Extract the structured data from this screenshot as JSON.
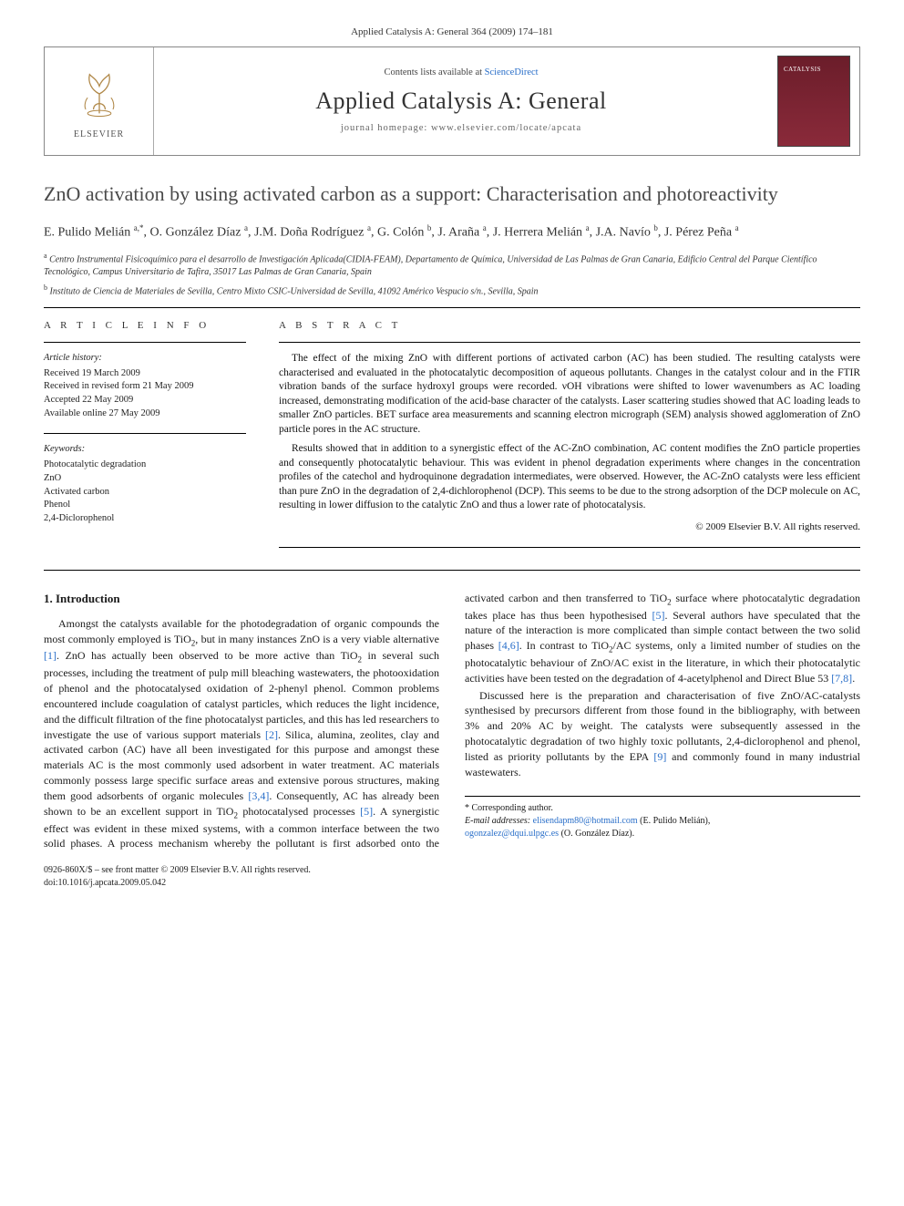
{
  "header": {
    "citation": "Applied Catalysis A: General 364 (2009) 174–181",
    "contents_prefix": "Contents lists available at ",
    "contents_link": "ScienceDirect",
    "journal_name": "Applied Catalysis A: General",
    "homepage_prefix": "journal homepage: ",
    "homepage_url": "www.elsevier.com/locate/apcata",
    "publisher": "ELSEVIER"
  },
  "title": "ZnO activation by using activated carbon as a support: Characterisation and photoreactivity",
  "authors_html": "E. Pulido Melián <sup>a,*</sup>, O. González Díaz <sup>a</sup>, J.M. Doña Rodríguez <sup>a</sup>, G. Colón <sup>b</sup>, J. Araña <sup>a</sup>, J. Herrera Melián <sup>a</sup>, J.A. Navío <sup>b</sup>, J. Pérez Peña <sup>a</sup>",
  "affiliations": {
    "a": "Centro Instrumental Fisicoquímico para el desarrollo de Investigación Aplicada(CIDIA-FEAM), Departamento de Química, Universidad de Las Palmas de Gran Canaria, Edificio Central del Parque Científico Tecnológico, Campus Universitario de Tafira, 35017 Las Palmas de Gran Canaria, Spain",
    "b": "Instituto de Ciencia de Materiales de Sevilla, Centro Mixto CSIC-Universidad de Sevilla, 41092 Américo Vespucio s/n., Sevilla, Spain"
  },
  "article_info": {
    "heading": "A R T I C L E   I N F O",
    "history_head": "Article history:",
    "received": "Received 19 March 2009",
    "revised": "Received in revised form 21 May 2009",
    "accepted": "Accepted 22 May 2009",
    "online": "Available online 27 May 2009",
    "keywords_head": "Keywords:",
    "keywords": [
      "Photocatalytic degradation",
      "ZnO",
      "Activated carbon",
      "Phenol",
      "2,4-Diclorophenol"
    ]
  },
  "abstract": {
    "heading": "A B S T R A C T",
    "p1": "The effect of the mixing ZnO with different portions of activated carbon (AC) has been studied. The resulting catalysts were characterised and evaluated in the photocatalytic decomposition of aqueous pollutants. Changes in the catalyst colour and in the FTIR vibration bands of the surface hydroxyl groups were recorded. νOH vibrations were shifted to lower wavenumbers as AC loading increased, demonstrating modification of the acid-base character of the catalysts. Laser scattering studies showed that AC loading leads to smaller ZnO particles. BET surface area measurements and scanning electron micrograph (SEM) analysis showed agglomeration of ZnO particle pores in the AC structure.",
    "p2": "Results showed that in addition to a synergistic effect of the AC-ZnO combination, AC content modifies the ZnO particle properties and consequently photocatalytic behaviour. This was evident in phenol degradation experiments where changes in the concentration profiles of the catechol and hydroquinone degradation intermediates, were observed. However, the AC-ZnO catalysts were less efficient than pure ZnO in the degradation of 2,4-dichlorophenol (DCP). This seems to be due to the strong adsorption of the DCP molecule on AC, resulting in lower diffusion to the catalytic ZnO and thus a lower rate of photocatalysis.",
    "copyright": "© 2009 Elsevier B.V. All rights reserved."
  },
  "intro": {
    "heading": "1. Introduction",
    "p1a": "Amongst the catalysts available for the photodegradation of organic compounds the most commonly employed is TiO",
    "p1b": ", but in many instances ZnO is a very viable alternative ",
    "p1c": ". ZnO has actually been observed to be more active than TiO",
    "p1d": " in several such processes, including the treatment of pulp mill bleaching wastewaters, the photooxidation of phenol and the photocatalysed oxidation of 2-phenyl phenol. Common problems encountered include coagulation of catalyst particles, which reduces the light incidence, and the difficult filtration of the fine photocatalyst particles, and this has led researchers to investigate the use of various support materials ",
    "p1e": ". Silica, alumina, zeolites, clay and activated carbon (AC) have all been investigated for this purpose and amongst these materials AC is the most commonly used adsorbent in water treatment. AC materials commonly possess large specific surface areas and ",
    "p2a": "extensive porous structures, making them good adsorbents of organic molecules ",
    "p2b": ". Consequently, AC has already been shown to be an excellent support in TiO",
    "p2c": " photocatalysed processes ",
    "p2d": ". A synergistic effect was evident in these mixed systems, with a common interface between the two solid phases. A process mechanism whereby the pollutant is first adsorbed onto the activated carbon and then transferred to TiO",
    "p2e": " surface where photocatalytic degradation takes place has thus been hypothesised ",
    "p2f": ". Several authors have speculated that the nature of the interaction is more complicated than simple contact between the two solid phases ",
    "p2g": ". In contrast to TiO",
    "p2h": "/AC systems, only a limited number of studies on the photocatalytic behaviour of ZnO/AC exist in the literature, in which their photocatalytic activities have been tested on the degradation of 4-acetylphenol and Direct Blue 53 ",
    "p2i": ".",
    "p3a": "Discussed here is the preparation and characterisation of five ZnO/AC-catalysts synthesised by precursors different from those found in the bibliography, with between 3% and 20% AC by weight. The catalysts were subsequently assessed in the photocatalytic degradation of two highly toxic pollutants, 2,4-diclorophenol and phenol, listed as priority pollutants by the EPA ",
    "p3b": " and commonly found in many industrial wastewaters."
  },
  "refs": {
    "r1": "[1]",
    "r2": "[2]",
    "r34": "[3,4]",
    "r5": "[5]",
    "r46": "[4,6]",
    "r78": "[7,8]",
    "r9": "[9]"
  },
  "footnote": {
    "star": "* Corresponding author.",
    "emails_label": "E-mail addresses: ",
    "email1": "elisendapm80@hotmail.com",
    "name1": " (E. Pulido Melián), ",
    "email2": "ogonzalez@dqui.ulpgc.es",
    "name2": " (O. González Díaz)."
  },
  "bottom": {
    "line1": "0926-860X/$ – see front matter © 2009 Elsevier B.V. All rights reserved.",
    "line2": "doi:10.1016/j.apcata.2009.05.042"
  },
  "colors": {
    "link": "#2a6fc9",
    "cover_bg_top": "#6b1d2a",
    "cover_bg_bottom": "#8a2a3a",
    "rule": "#000000",
    "text": "#1a1a1a",
    "muted": "#555555"
  }
}
